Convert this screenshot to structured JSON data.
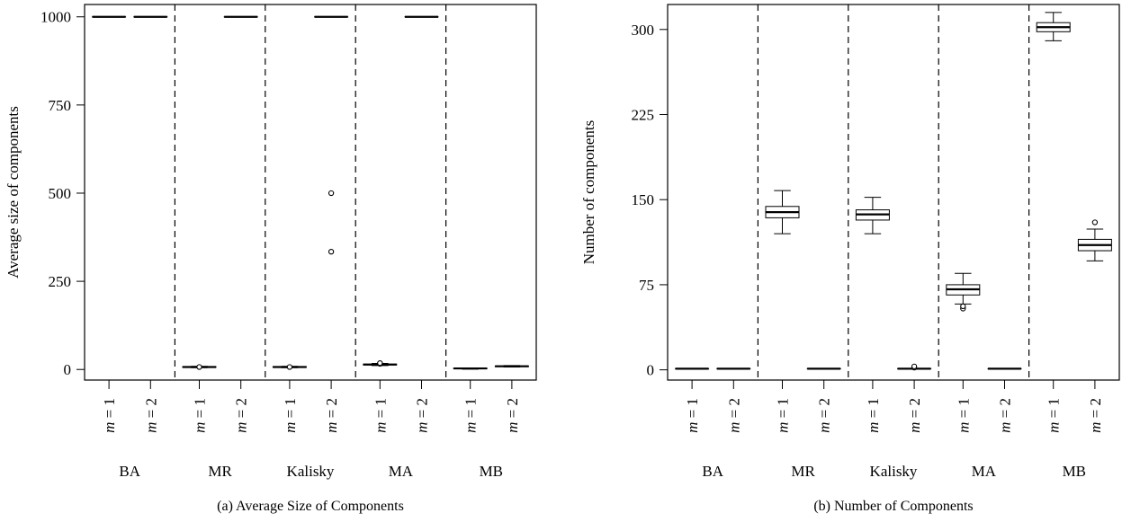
{
  "chart_data": [
    {
      "type": "boxplot",
      "caption": "(a)  Average Size of Components",
      "xlabel": "",
      "ylabel": "Average size of components",
      "ylim": [
        -30,
        1035
      ],
      "yticks": [
        0,
        250,
        500,
        750,
        1000
      ],
      "grid": false,
      "legend": "none",
      "group_separators": "dashed",
      "categories": [
        "m = 1",
        "m = 2",
        "m = 1",
        "m = 2",
        "m = 1",
        "m = 2",
        "m = 1",
        "m = 2",
        "m = 1",
        "m = 2"
      ],
      "groups": [
        {
          "label": "BA",
          "boxes": [
            {
              "category": "m = 1",
              "min": 1000,
              "q1": 1000,
              "median": 1000,
              "q3": 1000,
              "max": 1000,
              "outliers": []
            },
            {
              "category": "m = 2",
              "min": 1000,
              "q1": 1000,
              "median": 1000,
              "q3": 1000,
              "max": 1000,
              "outliers": []
            }
          ]
        },
        {
          "label": "MR",
          "boxes": [
            {
              "category": "m = 1",
              "min": 5,
              "q1": 6,
              "median": 7,
              "q3": 8,
              "max": 9,
              "outliers": [
                7
              ]
            },
            {
              "category": "m = 2",
              "min": 1000,
              "q1": 1000,
              "median": 1000,
              "q3": 1000,
              "max": 1000,
              "outliers": []
            }
          ]
        },
        {
          "label": "Kalisky",
          "boxes": [
            {
              "category": "m = 1",
              "min": 5,
              "q1": 6,
              "median": 7,
              "q3": 8,
              "max": 9,
              "outliers": [
                7
              ]
            },
            {
              "category": "m = 2",
              "min": 1000,
              "q1": 1000,
              "median": 1000,
              "q3": 1000,
              "max": 1000,
              "outliers": [
                500,
                334
              ]
            }
          ]
        },
        {
          "label": "MA",
          "boxes": [
            {
              "category": "m = 1",
              "min": 11,
              "q1": 13,
              "median": 14,
              "q3": 15,
              "max": 17,
              "outliers": [
                16,
                18
              ]
            },
            {
              "category": "m = 2",
              "min": 1000,
              "q1": 1000,
              "median": 1000,
              "q3": 1000,
              "max": 1000,
              "outliers": []
            }
          ]
        },
        {
          "label": "MB",
          "boxes": [
            {
              "category": "m = 1",
              "min": 1,
              "q1": 2,
              "median": 3,
              "q3": 3.5,
              "max": 4,
              "outliers": []
            },
            {
              "category": "m = 2",
              "min": 7,
              "q1": 8,
              "median": 9,
              "q3": 10,
              "max": 11,
              "outliers": []
            }
          ]
        }
      ]
    },
    {
      "type": "boxplot",
      "caption": "(b)  Number of Components",
      "xlabel": "",
      "ylabel": "Number of components",
      "ylim": [
        -9,
        322
      ],
      "yticks": [
        0,
        75,
        150,
        225,
        300
      ],
      "grid": false,
      "legend": "none",
      "group_separators": "dashed",
      "categories": [
        "m = 1",
        "m = 2",
        "m = 1",
        "m = 2",
        "m = 1",
        "m = 2",
        "m = 1",
        "m = 2",
        "m = 1",
        "m = 2"
      ],
      "groups": [
        {
          "label": "BA",
          "boxes": [
            {
              "category": "m = 1",
              "min": 1,
              "q1": 1,
              "median": 1,
              "q3": 1,
              "max": 1,
              "outliers": []
            },
            {
              "category": "m = 2",
              "min": 1,
              "q1": 1,
              "median": 1,
              "q3": 1,
              "max": 1,
              "outliers": []
            }
          ]
        },
        {
          "label": "MR",
          "boxes": [
            {
              "category": "m = 1",
              "min": 120,
              "q1": 134,
              "median": 139,
              "q3": 144,
              "max": 158,
              "outliers": []
            },
            {
              "category": "m = 2",
              "min": 1,
              "q1": 1,
              "median": 1,
              "q3": 1,
              "max": 1,
              "outliers": []
            }
          ]
        },
        {
          "label": "Kalisky",
          "boxes": [
            {
              "category": "m = 1",
              "min": 120,
              "q1": 132,
              "median": 137,
              "q3": 141,
              "max": 152,
              "outliers": []
            },
            {
              "category": "m = 2",
              "min": 1,
              "q1": 1,
              "median": 1,
              "q3": 1,
              "max": 1,
              "outliers": [
                2,
                3
              ]
            }
          ]
        },
        {
          "label": "MA",
          "boxes": [
            {
              "category": "m = 1",
              "min": 58,
              "q1": 66,
              "median": 71,
              "q3": 75,
              "max": 85,
              "outliers": [
                54,
                56
              ]
            },
            {
              "category": "m = 2",
              "min": 1,
              "q1": 1,
              "median": 1,
              "q3": 1,
              "max": 1,
              "outliers": []
            }
          ]
        },
        {
          "label": "MB",
          "boxes": [
            {
              "category": "m = 1",
              "min": 290,
              "q1": 298,
              "median": 302,
              "q3": 306,
              "max": 315,
              "outliers": []
            },
            {
              "category": "m = 2",
              "min": 96,
              "q1": 105,
              "median": 110,
              "q3": 115,
              "max": 124,
              "outliers": [
                130
              ]
            }
          ]
        }
      ]
    }
  ]
}
